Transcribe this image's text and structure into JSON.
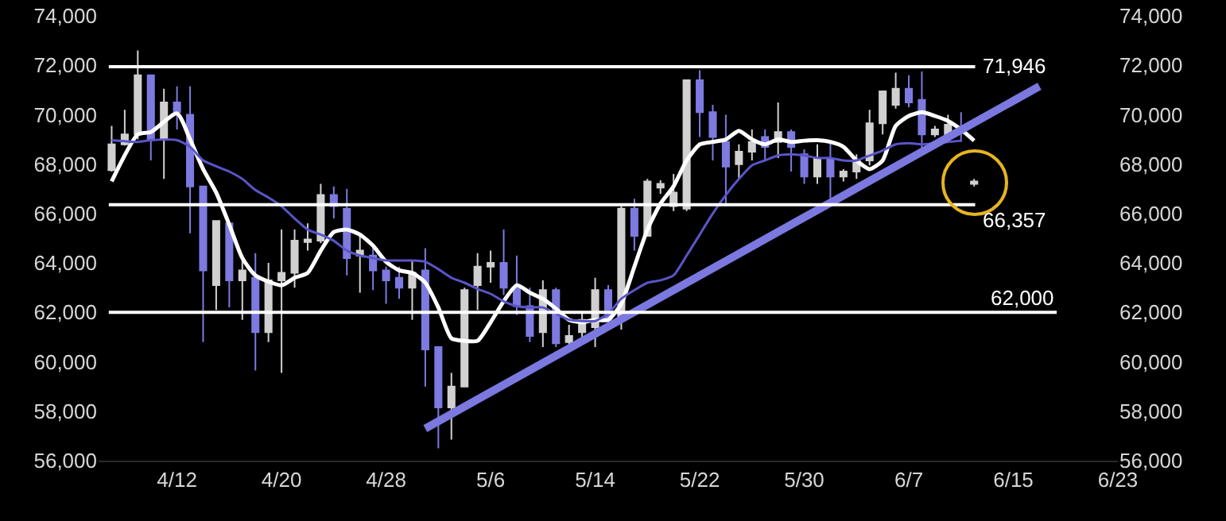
{
  "chart_data": {
    "type": "candlestick",
    "x": [
      "--04-07",
      "--04-08",
      "--04-09",
      "--04-10",
      "--04-11",
      "--04-12",
      "--04-13",
      "--04-14",
      "--04-15",
      "--04-16",
      "--04-17",
      "--04-18",
      "--04-19",
      "--04-20",
      "--04-21",
      "--04-22",
      "--04-23",
      "--04-24",
      "--04-25",
      "--04-26",
      "--04-27",
      "--04-28",
      "--04-29",
      "--04-30",
      "--05-01",
      "--05-02",
      "--05-03",
      "--05-04",
      "--05-05",
      "--05-06",
      "--05-07",
      "--05-08",
      "--05-09",
      "--05-10",
      "--05-11",
      "--05-12",
      "--05-13",
      "--05-14",
      "--05-15",
      "--05-16",
      "--05-17",
      "--05-18",
      "--05-19",
      "--05-20",
      "--05-21",
      "--05-22",
      "--05-23",
      "--05-24",
      "--05-25",
      "--05-26",
      "--05-27",
      "--05-28",
      "--05-29",
      "--05-30",
      "--05-31",
      "--06-01",
      "--06-02",
      "--06-03",
      "--06-04",
      "--06-05",
      "--06-06",
      "--06-07",
      "--06-08",
      "--06-09",
      "--06-10",
      "--06-11",
      "--06-12"
    ],
    "ohlc": [
      [
        67760,
        69550,
        67700,
        68800
      ],
      [
        68800,
        70200,
        68750,
        69200
      ],
      [
        69200,
        72600,
        69000,
        71600
      ],
      [
        71600,
        71600,
        68150,
        68970
      ],
      [
        69000,
        71050,
        67400,
        70500
      ],
      [
        70500,
        71150,
        69400,
        70100
      ],
      [
        70000,
        71150,
        65200,
        67100
      ],
      [
        67100,
        67100,
        60800,
        63700
      ],
      [
        63100,
        65700,
        62100,
        65700
      ],
      [
        65600,
        65600,
        62200,
        63300
      ],
      [
        63300,
        64300,
        61700,
        63700
      ],
      [
        63400,
        64400,
        59650,
        61200
      ],
      [
        61200,
        64000,
        60800,
        63300
      ],
      [
        63300,
        65350,
        59550,
        63600
      ],
      [
        63600,
        65350,
        63000,
        64900
      ],
      [
        64850,
        65600,
        64500,
        64950
      ],
      [
        64900,
        67200,
        64800,
        66750
      ],
      [
        66750,
        67100,
        65800,
        66300
      ],
      [
        66200,
        67000,
        63500,
        64200
      ],
      [
        64300,
        65100,
        62800,
        64500
      ],
      [
        64300,
        64700,
        62900,
        63700
      ],
      [
        63700,
        63850,
        62350,
        63300
      ],
      [
        63400,
        63850,
        62550,
        63000
      ],
      [
        63000,
        64100,
        61700,
        63600
      ],
      [
        63700,
        64600,
        59000,
        60500
      ],
      [
        60600,
        60600,
        56500,
        58150
      ],
      [
        58150,
        59550,
        56850,
        59000
      ],
      [
        59000,
        63000,
        59000,
        62900
      ],
      [
        63100,
        64400,
        62100,
        63850
      ],
      [
        63850,
        64500,
        63200,
        64000
      ],
      [
        64000,
        65350,
        62700,
        63000
      ],
      [
        63000,
        64300,
        61900,
        62250
      ],
      [
        62250,
        63000,
        60800,
        61050
      ],
      [
        61200,
        63300,
        60600,
        62900
      ],
      [
        62900,
        63000,
        60600,
        60750
      ],
      [
        60800,
        61500,
        60700,
        61050
      ],
      [
        61200,
        62000,
        60800,
        61700
      ],
      [
        61400,
        63400,
        60600,
        62900
      ],
      [
        62900,
        63100,
        61400,
        61700
      ],
      [
        61700,
        66300,
        61300,
        66200
      ],
      [
        66200,
        66600,
        64500,
        65100
      ],
      [
        65100,
        67400,
        65100,
        67300
      ],
      [
        67050,
        67350,
        66800,
        67200
      ],
      [
        66300,
        67600,
        66100,
        66850
      ],
      [
        66200,
        71400,
        66100,
        71400
      ],
      [
        71400,
        71800,
        69100,
        70100
      ],
      [
        70100,
        70400,
        68150,
        69100
      ],
      [
        68900,
        70000,
        66300,
        67900
      ],
      [
        68000,
        68800,
        67400,
        68500
      ],
      [
        68500,
        69400,
        68150,
        68900
      ],
      [
        69100,
        69400,
        68150,
        68700
      ],
      [
        68900,
        70500,
        68250,
        69300
      ],
      [
        69300,
        69400,
        67700,
        68700
      ],
      [
        68400,
        68600,
        67200,
        67500
      ],
      [
        67500,
        68800,
        67200,
        68250
      ],
      [
        68200,
        68900,
        66300,
        67500
      ],
      [
        67500,
        67800,
        67300,
        67700
      ],
      [
        67700,
        68400,
        67400,
        68150
      ],
      [
        68150,
        70200,
        67950,
        69650
      ],
      [
        69650,
        70950,
        69200,
        70950
      ],
      [
        70400,
        71700,
        70250,
        71050
      ],
      [
        71050,
        71600,
        70300,
        70500
      ],
      [
        70600,
        71750,
        68600,
        69200
      ],
      [
        69200,
        69550,
        69100,
        69400
      ],
      [
        69200,
        70000,
        69000,
        69600
      ],
      [
        69450,
        70100,
        68900,
        69250
      ],
      [
        67200,
        67400,
        67100,
        67300
      ]
    ],
    "colors": [
      "#d0d0d0",
      "#d0d0d0",
      "#d0d0d0",
      "#7d7ae0",
      "#d0d0d0",
      "#7d7ae0",
      "#7d7ae0",
      "#7d7ae0",
      "#d0d0d0",
      "#7d7ae0",
      "#d0d0d0",
      "#7d7ae0",
      "#d0d0d0",
      "#d0d0d0",
      "#d0d0d0",
      "#d0d0d0",
      "#d0d0d0",
      "#7d7ae0",
      "#7d7ae0",
      "#d0d0d0",
      "#7d7ae0",
      "#7d7ae0",
      "#7d7ae0",
      "#d0d0d0",
      "#7d7ae0",
      "#7d7ae0",
      "#d0d0d0",
      "#d0d0d0",
      "#d0d0d0",
      "#d0d0d0",
      "#7d7ae0",
      "#7d7ae0",
      "#7d7ae0",
      "#d0d0d0",
      "#7d7ae0",
      "#d0d0d0",
      "#d0d0d0",
      "#d0d0d0",
      "#7d7ae0",
      "#d0d0d0",
      "#7d7ae0",
      "#d0d0d0",
      "#d0d0d0",
      "#d0d0d0",
      "#d0d0d0",
      "#7d7ae0",
      "#7d7ae0",
      "#7d7ae0",
      "#d0d0d0",
      "#d0d0d0",
      "#7d7ae0",
      "#d0d0d0",
      "#7d7ae0",
      "#7d7ae0",
      "#d0d0d0",
      "#7d7ae0",
      "#d0d0d0",
      "#d0d0d0",
      "#d0d0d0",
      "#d0d0d0",
      "#d0d0d0",
      "#7d7ae0",
      "#7d7ae0",
      "#d0d0d0",
      "#d0d0d0",
      "#7d7ae0",
      "#d0d0d0"
    ],
    "series": [
      {
        "type": "line",
        "color": "#ffffff",
        "x": [
          "--04-07",
          "--04-09",
          "--04-10",
          "--04-12",
          "--04-13",
          "--04-14",
          "--04-15",
          "--04-16",
          "--04-17",
          "--04-18",
          "--04-20",
          "--04-21",
          "--04-22",
          "--04-23",
          "--04-24",
          "--04-25",
          "--04-26",
          "--04-27",
          "--04-28",
          "--04-29",
          "--04-30",
          "--05-01",
          "--05-02",
          "--05-03",
          "--05-04",
          "--05-05",
          "--05-06",
          "--05-07",
          "--05-08",
          "--05-09",
          "--05-10",
          "--05-11",
          "--05-12",
          "--05-13",
          "--05-14",
          "--05-15",
          "--05-16",
          "--05-17",
          "--05-18",
          "--05-19",
          "--05-20",
          "--05-21",
          "--05-22",
          "--05-23",
          "--05-24",
          "--05-25",
          "--05-26",
          "--05-27",
          "--05-28",
          "--05-29",
          "--05-30",
          "--05-31",
          "--06-01",
          "--06-02",
          "--06-03",
          "--06-04",
          "--06-05",
          "--06-06",
          "--06-07",
          "--06-08",
          "--06-09",
          "--06-10",
          "--06-11",
          "--06-12"
        ],
        "values": [
          67300,
          69200,
          69300,
          70050,
          69000,
          67800,
          66850,
          65550,
          64200,
          63500,
          63100,
          63400,
          63600,
          64500,
          65250,
          65350,
          65150,
          64700,
          64050,
          63700,
          63600,
          63200,
          62200,
          60950,
          60850,
          60850,
          61600,
          62450,
          63100,
          62800,
          62550,
          62150,
          61700,
          61600,
          61700,
          61700,
          62350,
          63850,
          65350,
          66400,
          67100,
          68150,
          68800,
          68900,
          69000,
          69350,
          69000,
          68800,
          69000,
          68900,
          68950,
          68970,
          68900,
          68700,
          68150,
          67800,
          68150,
          69550,
          69950,
          70100,
          69950,
          69750,
          69400,
          68950
        ]
      },
      {
        "type": "line",
        "color": "#5a55c8",
        "x": [
          "--04-07",
          "--04-09",
          "--04-10",
          "--04-12",
          "--04-13",
          "--04-14",
          "--04-16",
          "--04-17",
          "--04-18",
          "--04-19",
          "--04-20",
          "--04-21",
          "--04-22",
          "--04-23",
          "--04-24",
          "--04-25",
          "--04-26",
          "--04-27",
          "--04-28",
          "--04-29",
          "--04-30",
          "--05-01",
          "--05-02",
          "--05-03",
          "--05-04",
          "--05-05",
          "--05-06",
          "--05-07",
          "--05-08",
          "--05-09",
          "--05-10",
          "--05-11",
          "--05-12",
          "--05-13",
          "--05-14",
          "--05-15",
          "--05-16",
          "--05-17",
          "--05-18",
          "--05-19",
          "--05-20",
          "--05-21",
          "--05-22",
          "--05-23",
          "--05-24",
          "--05-25",
          "--05-26",
          "--05-27",
          "--05-28",
          "--05-29",
          "--05-30",
          "--05-31",
          "--06-01",
          "--06-02",
          "--06-03",
          "--06-04",
          "--06-05",
          "--06-06",
          "--06-07",
          "--06-08",
          "--06-09",
          "--06-10",
          "--06-11"
        ],
        "values": [
          68970,
          68900,
          68970,
          68970,
          68700,
          68150,
          67700,
          67400,
          66950,
          66650,
          66300,
          65800,
          65350,
          65150,
          64900,
          64500,
          64300,
          64200,
          64100,
          64100,
          64100,
          64050,
          63750,
          63400,
          63200,
          62950,
          62750,
          62450,
          62250,
          62200,
          62200,
          61950,
          61700,
          61650,
          61650,
          61950,
          62550,
          62900,
          63200,
          63300,
          63500,
          64300,
          65150,
          66000,
          66750,
          67400,
          67950,
          68150,
          68350,
          68400,
          68350,
          68250,
          68250,
          68150,
          68150,
          68350,
          68550,
          68800,
          68850,
          68800,
          68850,
          68900,
          68950
        ]
      },
      {
        "type": "line",
        "color": "#7b78e0",
        "x": [
          "--05-01",
          "--06-17"
        ],
        "values": [
          57300,
          71150
        ]
      }
    ],
    "ref_lines": [
      {
        "axis": "y",
        "value": 71946,
        "label": "71,946",
        "color": "#ffffff"
      },
      {
        "axis": "y",
        "value": 66357,
        "label": "66,357",
        "color": "#ffffff"
      },
      {
        "axis": "y",
        "value": 62000,
        "label": "62,000",
        "color": "#ffffff"
      }
    ],
    "xlim": [
      "--04-06",
      "--06-23"
    ],
    "xticks": [
      {
        "value": "--04-12",
        "label": "4/12"
      },
      {
        "value": "--04-20",
        "label": "4/20"
      },
      {
        "value": "--04-28",
        "label": "4/28"
      },
      {
        "value": "--05-06",
        "label": "5/6"
      },
      {
        "value": "--05-14",
        "label": "5/14"
      },
      {
        "value": "--05-22",
        "label": "5/22"
      },
      {
        "value": "--05-30",
        "label": "5/30"
      },
      {
        "value": "--06-07",
        "label": "6/7"
      },
      {
        "value": "--06-15",
        "label": "6/15"
      },
      {
        "value": "--06-23",
        "label": "6/23"
      }
    ],
    "ylim": [
      56000,
      74000
    ],
    "yticks": [
      {
        "value": 56000,
        "label": "56,000"
      },
      {
        "value": 58000,
        "label": "58,000"
      },
      {
        "value": 60000,
        "label": "60,000"
      },
      {
        "value": 62000,
        "label": "62,000"
      },
      {
        "value": 64000,
        "label": "64,000"
      },
      {
        "value": 66000,
        "label": "66,000"
      },
      {
        "value": 68000,
        "label": "68,000"
      },
      {
        "value": 70000,
        "label": "70,000"
      },
      {
        "value": 72000,
        "label": "72,000"
      },
      {
        "value": 74000,
        "label": "74,000"
      }
    ],
    "y2lim": [
      56000,
      74000
    ],
    "y2ticks": [
      {
        "value": 56000,
        "label": "56,000"
      },
      {
        "value": 58000,
        "label": "58,000"
      },
      {
        "value": 60000,
        "label": "60,000"
      },
      {
        "value": 62000,
        "label": "62,000"
      },
      {
        "value": 64000,
        "label": "64,000"
      },
      {
        "value": 66000,
        "label": "66,000"
      },
      {
        "value": 68000,
        "label": "68,000"
      },
      {
        "value": 70000,
        "label": "70,000"
      },
      {
        "value": 72000,
        "label": "72,000"
      },
      {
        "value": 74000,
        "label": "74,000"
      }
    ],
    "grid": false
  }
}
